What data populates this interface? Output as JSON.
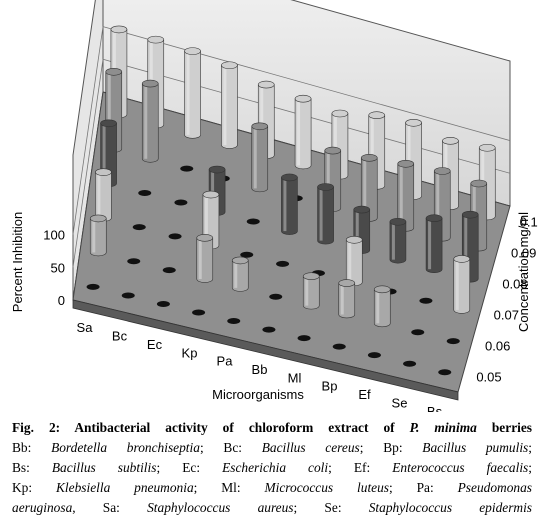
{
  "chart_data": {
    "type": "bar3d",
    "xlabel": "Microorganisms",
    "ylabel": "Concentration mg/ml",
    "zlabel": "Percent Inhibition",
    "categories": [
      "Sa",
      "Bc",
      "Ec",
      "Kp",
      "Pa",
      "Bb",
      "Ml",
      "Bp",
      "Ef",
      "Se",
      "Bs"
    ],
    "z_ticks": [
      "0",
      "50",
      "100"
    ],
    "series": [
      {
        "name": "0.05",
        "values": [
          0,
          0,
          0,
          0,
          0,
          0,
          0,
          0,
          0,
          0,
          0
        ]
      },
      {
        "name": "0.06",
        "values": [
          52,
          0,
          0,
          63,
          42,
          0,
          45,
          48,
          52,
          0,
          0
        ]
      },
      {
        "name": "0.07",
        "values": [
          70,
          0,
          0,
          78,
          0,
          0,
          0,
          65,
          0,
          0,
          78
        ]
      },
      {
        "name": "0.08",
        "values": [
          92,
          0,
          0,
          65,
          0,
          82,
          82,
          62,
          58,
          78,
          98
        ]
      },
      {
        "name": "0.09",
        "values": [
          118,
          115,
          0,
          0,
          95,
          0,
          88,
          92,
          98,
          102,
          98
        ]
      },
      {
        "name": "0.1",
        "values": [
          130,
          130,
          128,
          122,
          108,
          102,
          95,
          108,
          112,
          100,
          105
        ]
      }
    ],
    "colors": {
      "0.05": "#1c1c1c",
      "0.06": "#a8a8a8",
      "0.07": "#c4c4c4",
      "0.08": "#4a4a4a",
      "0.09": "#8e8e8e",
      "0.1": "#cfcfcf"
    },
    "zlim": [
      0,
      130
    ]
  },
  "caption": {
    "line1_bold": "Fig. 2: Antibacterial activity of chloroform extract of ",
    "line1_ital": "P. minima",
    "line1_end": " berries",
    "rows": [
      [
        [
          "Bb: ",
          ""
        ],
        [
          "Bordetella bronchiseptia",
          "i"
        ],
        [
          "; Bc: ",
          ""
        ],
        [
          "Bacillus cereus",
          "i"
        ],
        [
          "; Bp: ",
          ""
        ],
        [
          "Bacillus pumulis",
          "i"
        ],
        [
          ";",
          ""
        ]
      ],
      [
        [
          "Bs: ",
          ""
        ],
        [
          "Bacillus subtilis",
          "i"
        ],
        [
          "; Ec: ",
          ""
        ],
        [
          "Escherichia coli",
          "i"
        ],
        [
          "; Ef: ",
          ""
        ],
        [
          "Enterococcus faecalis",
          "i"
        ],
        [
          ";",
          ""
        ]
      ],
      [
        [
          "Kp: ",
          ""
        ],
        [
          "Klebsiella pneumonia",
          "i"
        ],
        [
          "; Ml: ",
          ""
        ],
        [
          "Micrococcus luteus",
          "i"
        ],
        [
          "; Pa: ",
          ""
        ],
        [
          "Pseudomonas",
          "i"
        ]
      ],
      [
        [
          "aeruginosa",
          "i"
        ],
        [
          ", Sa: ",
          ""
        ],
        [
          "Staphylococcus aureus",
          "i"
        ],
        [
          "; Se: ",
          ""
        ],
        [
          "Staphylococcus epidermis",
          "i"
        ]
      ]
    ]
  }
}
